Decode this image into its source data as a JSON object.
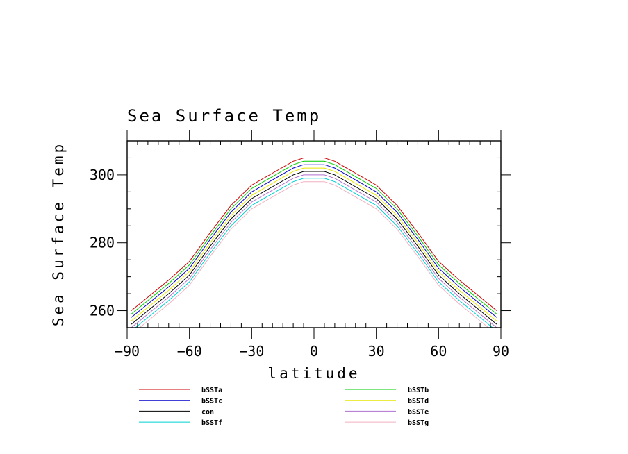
{
  "chart_data": {
    "type": "line",
    "title": "Sea Surface Temp",
    "xlabel": "latitude",
    "ylabel": "Sea Surface Temp",
    "xlim": [
      -90,
      90
    ],
    "ylim": [
      255,
      310
    ],
    "xticks": [
      -90,
      -60,
      -30,
      0,
      30,
      60,
      90
    ],
    "yticks": [
      260,
      280,
      300
    ],
    "x": [
      -88,
      -80,
      -70,
      -60,
      -50,
      -40,
      -30,
      -20,
      -10,
      -5,
      5,
      10,
      20,
      30,
      40,
      50,
      60,
      70,
      80,
      88
    ],
    "series": [
      {
        "name": "bSSTa",
        "color": "#cc0000",
        "values": [
          260,
          264,
          269,
          274.5,
          283,
          291,
          297,
          300.5,
          304,
          305,
          305,
          304,
          300.5,
          297,
          291,
          283,
          274.5,
          269,
          264,
          260
        ]
      },
      {
        "name": "bSSTb",
        "color": "#00cc00",
        "values": [
          259,
          263,
          268,
          273.5,
          282,
          290,
          296,
          299.5,
          303,
          304,
          304,
          303,
          299.5,
          296,
          290,
          282,
          273.5,
          268,
          263,
          259
        ]
      },
      {
        "name": "bSSTc",
        "color": "#0000cc",
        "values": [
          258,
          262,
          267,
          272.5,
          281,
          289,
          295,
          298.5,
          302,
          303,
          303,
          302,
          298.5,
          295,
          289,
          281,
          272.5,
          267,
          262,
          258
        ]
      },
      {
        "name": "bSSTd",
        "color": "#e6e600",
        "values": [
          257,
          261,
          266,
          271.5,
          280,
          288,
          294,
          297.5,
          301,
          302,
          302,
          301,
          297.5,
          294,
          288,
          280,
          271.5,
          266,
          261,
          257
        ]
      },
      {
        "name": "con",
        "color": "#000000",
        "values": [
          256,
          260,
          265,
          270.5,
          279,
          287,
          293,
          296.5,
          300,
          301,
          301,
          300,
          296.5,
          293,
          287,
          279,
          270.5,
          265,
          260,
          256
        ]
      },
      {
        "name": "bSSTe",
        "color": "#b070d0",
        "values": [
          255,
          259,
          264,
          269.5,
          278,
          286,
          292,
          295.5,
          299,
          300,
          300,
          299,
          295.5,
          292,
          286,
          278,
          269.5,
          264,
          259,
          255
        ]
      },
      {
        "name": "bSSTf",
        "color": "#00d0d0",
        "values": [
          254,
          258,
          263,
          268.5,
          277,
          285,
          291,
          294.5,
          298,
          299,
          299,
          298,
          294.5,
          291,
          285,
          277,
          268.5,
          263,
          258,
          254
        ]
      },
      {
        "name": "bSSTg",
        "color": "#f0b0c0",
        "values": [
          253,
          257,
          262,
          267.5,
          276,
          284,
          290,
          293.5,
          297,
          298,
          298,
          297,
          293.5,
          290,
          284,
          276,
          267.5,
          262,
          257,
          253
        ]
      }
    ],
    "legend": {
      "placement": "bottom",
      "columns": [
        [
          "bSSTa",
          "bSSTc",
          "con",
          "bSSTf"
        ],
        [
          "bSSTb",
          "bSSTd",
          "bSSTe",
          "bSSTg"
        ]
      ]
    }
  }
}
